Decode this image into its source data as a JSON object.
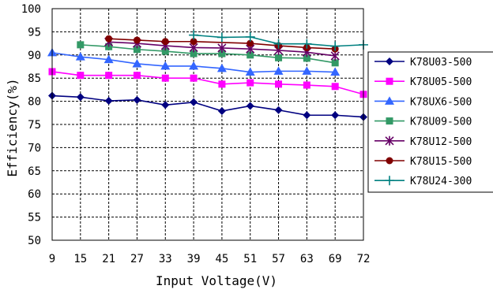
{
  "chart_data": {
    "type": "line",
    "title": "",
    "xlabel": "Input Voltage(V)",
    "ylabel": "Efficiency(%)",
    "x_categories": [
      "9",
      "15",
      "21",
      "27",
      "33",
      "39",
      "45",
      "51",
      "57",
      "63",
      "69",
      "72"
    ],
    "y_ticks": [
      "50",
      "55",
      "60",
      "65",
      "70",
      "75",
      "80",
      "85",
      "90",
      "95",
      "100"
    ],
    "ylim": [
      50,
      100
    ],
    "grid": true,
    "legend_position": "right",
    "series": [
      {
        "name": "K78U03-500",
        "color": "#000080",
        "marker": "diamond",
        "x": [
          "9",
          "15",
          "21",
          "27",
          "33",
          "39",
          "45",
          "51",
          "57",
          "63",
          "69",
          "72"
        ],
        "y": [
          81.2,
          80.9,
          80.1,
          80.3,
          79.2,
          79.8,
          77.9,
          79.0,
          78.1,
          77.0,
          77.0,
          76.6
        ]
      },
      {
        "name": "K78U05-500",
        "color": "#ff00ff",
        "marker": "square",
        "x": [
          "9",
          "15",
          "21",
          "27",
          "33",
          "39",
          "45",
          "51",
          "57",
          "63",
          "69",
          "72"
        ],
        "y": [
          86.4,
          85.6,
          85.6,
          85.6,
          85.0,
          85.0,
          83.7,
          84.0,
          83.7,
          83.5,
          83.2,
          81.5
        ]
      },
      {
        "name": "K78UX6-500",
        "color": "#3366ff",
        "marker": "triangle",
        "x": [
          "9",
          "15",
          "21",
          "27",
          "33",
          "39",
          "45",
          "51",
          "57",
          "63",
          "69"
        ],
        "y": [
          90.5,
          89.6,
          89.0,
          88.1,
          87.6,
          87.6,
          87.1,
          86.3,
          86.5,
          86.5,
          86.3
        ]
      },
      {
        "name": "K78U09-500",
        "color": "#339966",
        "marker": "square",
        "x": [
          "15",
          "21",
          "27",
          "33",
          "39",
          "45",
          "51",
          "57",
          "63",
          "69"
        ],
        "y": [
          92.2,
          91.8,
          91.2,
          90.8,
          90.3,
          90.3,
          90.0,
          89.4,
          89.3,
          88.3
        ]
      },
      {
        "name": "K78U12-500",
        "color": "#660066",
        "marker": "star",
        "x": [
          "21",
          "27",
          "33",
          "39",
          "45",
          "51",
          "57",
          "63",
          "69"
        ],
        "y": [
          92.8,
          92.5,
          92.0,
          91.6,
          91.5,
          91.3,
          91.0,
          90.6,
          89.8
        ]
      },
      {
        "name": "K78U15-500",
        "color": "#800000",
        "marker": "circle",
        "x": [
          "21",
          "27",
          "33",
          "39",
          "51",
          "57",
          "63",
          "69"
        ],
        "y": [
          93.5,
          93.2,
          92.9,
          92.9,
          92.5,
          92.0,
          91.6,
          91.3
        ]
      },
      {
        "name": "K78U24-300",
        "color": "#008080",
        "marker": "plus",
        "x": [
          "39",
          "45",
          "51",
          "57",
          "63",
          "69",
          "72"
        ],
        "y": [
          94.3,
          93.8,
          93.9,
          92.4,
          92.4,
          91.9,
          92.2
        ]
      }
    ]
  }
}
